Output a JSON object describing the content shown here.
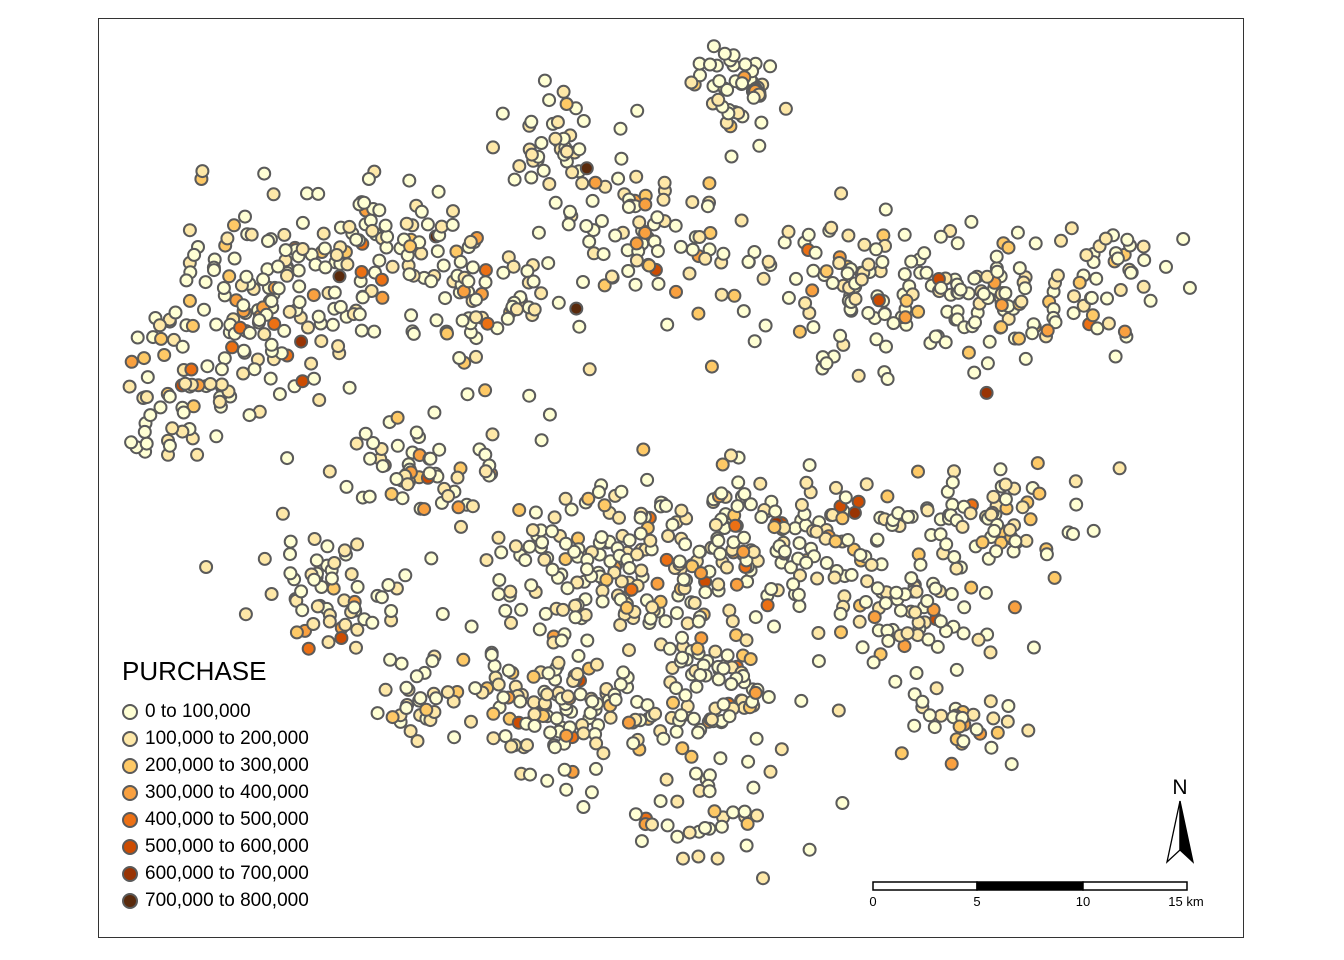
{
  "legend": {
    "title": "PURCHASE",
    "items": [
      {
        "label": "0 to 100,000",
        "color": "#ffffd4"
      },
      {
        "label": "100,000 to 200,000",
        "color": "#fee8a8"
      },
      {
        "label": "200,000 to 300,000",
        "color": "#fec966"
      },
      {
        "label": "300,000 to 400,000",
        "color": "#f9a03f"
      },
      {
        "label": "400,000 to 500,000",
        "color": "#ec7014"
      },
      {
        "label": "500,000 to 600,000",
        "color": "#cc4c02"
      },
      {
        "label": "600,000 to 700,000",
        "color": "#993404"
      },
      {
        "label": "700,000 to 800,000",
        "color": "#5a2a0c"
      }
    ]
  },
  "scalebar": {
    "ticks": [
      "0",
      "5",
      "10",
      "15 km"
    ]
  },
  "north_arrow": {
    "label": "N"
  },
  "point_style": {
    "stroke": "#5a5a5a"
  }
}
